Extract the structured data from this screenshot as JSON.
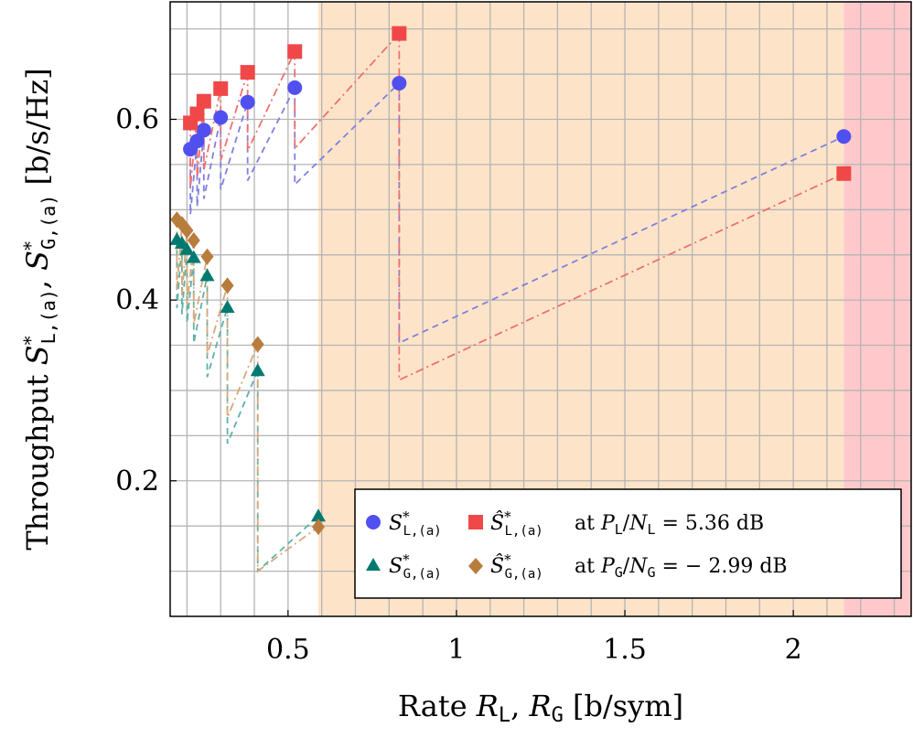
{
  "chart_data": {
    "type": "scatter",
    "xlabel": "Rate R_L, R_G [b/sym]",
    "ylabel": "Throughput S*_L,(a), S*_G,(a) [b/s/Hz]",
    "xlim": [
      0.15,
      2.35
    ],
    "ylim": [
      0.05,
      0.73
    ],
    "xticks": [
      0.5,
      1,
      1.5,
      2
    ],
    "xtick_labels": [
      "0.5",
      "1",
      "1.5",
      "2"
    ],
    "yticks": [
      0.2,
      0.4,
      0.6
    ],
    "ytick_labels": [
      "0.2",
      "0.4",
      "0.6"
    ],
    "grid": true,
    "legend_position": "bottom-right",
    "regions": [
      {
        "x_from": 0.59,
        "x_to": 2.15,
        "color": "#fde4c8"
      },
      {
        "x_from": 2.15,
        "x_to": 2.35,
        "color": "#ffc9cc"
      }
    ],
    "legend": {
      "row1_math": "S*_L,(a) Ŝ*_L,(a)",
      "row1_text": "at P_L/N_L = 5.36 dB",
      "row2_math": "S*_G,(a) Ŝ*_G,(a)",
      "row2_text": "at P_G/N_G = − 2.99 dB"
    },
    "series": [
      {
        "marker": "circle",
        "color": "#5050f0",
        "line_color": "#8080e0",
        "line_style": "dashed",
        "x": [
          0.21,
          0.23,
          0.25,
          0.3,
          0.38,
          0.52,
          0.83,
          2.15
        ],
        "y": [
          0.567,
          0.576,
          0.588,
          0.602,
          0.619,
          0.635,
          0.64,
          0.581
        ]
      },
      {
        "marker": "square",
        "color": "#f04848",
        "line_color": "#f07070",
        "line_style": "dashdot",
        "x": [
          0.21,
          0.23,
          0.25,
          0.3,
          0.38,
          0.52,
          0.83,
          2.15
        ],
        "y": [
          0.596,
          0.606,
          0.62,
          0.634,
          0.652,
          0.675,
          0.695,
          0.54
        ]
      },
      {
        "marker": "triangle",
        "color": "#007a70",
        "line_color": "#5fb0a8",
        "line_style": "dashed",
        "x": [
          0.17,
          0.185,
          0.2,
          0.22,
          0.26,
          0.32,
          0.41,
          0.59
        ],
        "y": [
          0.467,
          0.463,
          0.456,
          0.447,
          0.427,
          0.392,
          0.322,
          0.161
        ]
      },
      {
        "marker": "diamond",
        "color": "#b87c3c",
        "line_color": "#d8a878",
        "line_style": "dashdot",
        "x": [
          0.17,
          0.185,
          0.2,
          0.22,
          0.26,
          0.32,
          0.41,
          0.59
        ],
        "y": [
          0.489,
          0.484,
          0.477,
          0.466,
          0.448,
          0.416,
          0.351,
          0.149
        ]
      }
    ]
  }
}
